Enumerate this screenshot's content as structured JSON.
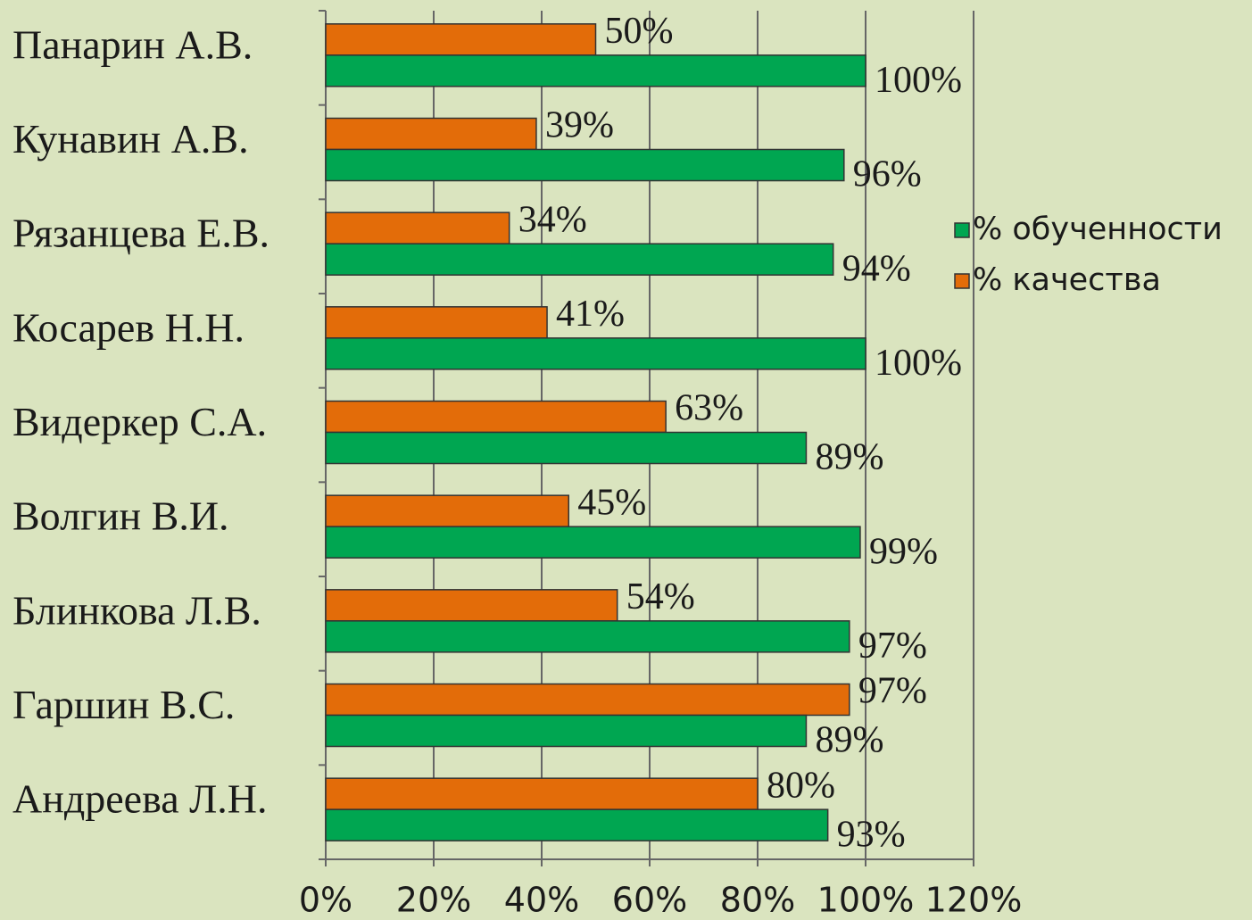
{
  "chart_data": {
    "type": "barh",
    "categories": [
      "Панарин А.В.",
      "Кунавин А.В.",
      "Рязанцева Е.В.",
      "Косарев Н.Н.",
      "Видеркер С.А.",
      "Волгин В.И.",
      "Блинкова Л.В.",
      "Гаршин В.С.",
      "Андреева Л.Н."
    ],
    "series": [
      {
        "name": "% обученности",
        "color": "#00a651",
        "values": [
          100,
          96,
          94,
          100,
          89,
          99,
          97,
          89,
          93
        ],
        "value_labels": [
          "100%",
          "96%",
          "94%",
          "100%",
          "89%",
          "99%",
          "97%",
          "89%",
          "93%"
        ]
      },
      {
        "name": "% качества",
        "color": "#e36c09",
        "values": [
          50,
          39,
          34,
          41,
          63,
          45,
          54,
          97,
          80
        ],
        "value_labels": [
          "50%",
          "39%",
          "34%",
          "41%",
          "63%",
          "45%",
          "54%",
          "97%",
          "80%"
        ]
      }
    ],
    "xlim": [
      0,
      120
    ],
    "xticks": [
      {
        "value": 0,
        "label": "0%"
      },
      {
        "value": 20,
        "label": "20%"
      },
      {
        "value": 40,
        "label": "40%"
      },
      {
        "value": 60,
        "label": "60%"
      },
      {
        "value": 80,
        "label": "80%"
      },
      {
        "value": 100,
        "label": "100%"
      },
      {
        "value": 120,
        "label": "120%"
      }
    ],
    "grid": true,
    "legend": "right"
  }
}
